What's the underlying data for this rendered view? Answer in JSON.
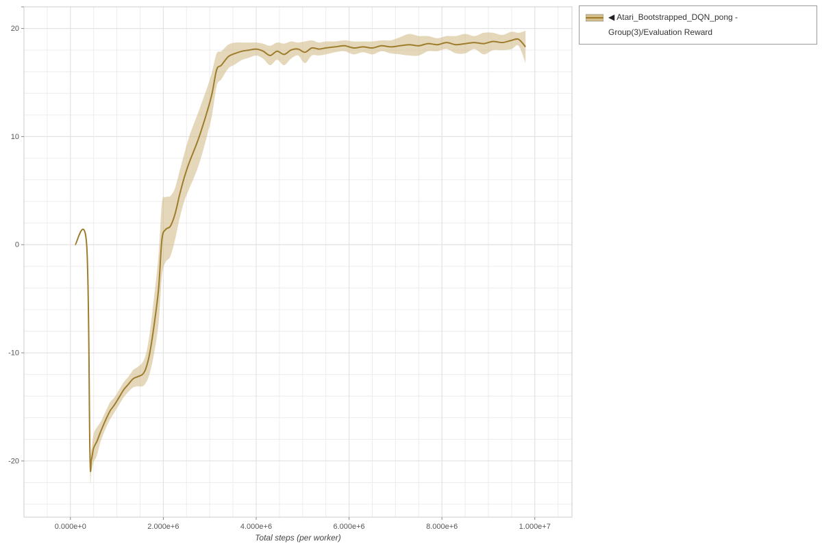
{
  "legend": {
    "marker": "◀",
    "series_label": "Atari_Bootstrapped_DQN_pong - Group(3)/Evaluation Reward"
  },
  "theme": {
    "line_color": "#9d7c2c",
    "band_color": "#d3bd8a",
    "band_opacity": 0.6,
    "grid_minor": "#ececec",
    "grid_major": "#e0e0e0",
    "frame": "#cccccc",
    "tick_color": "#888888",
    "axis_text": "#555555",
    "xlabel_color": "#444444"
  },
  "chart_data": {
    "type": "line",
    "title": "",
    "xlabel": "Total steps (per worker)",
    "ylabel": "",
    "legend_position": "top-right-outside",
    "grid": {
      "major": true,
      "minor": true
    },
    "xlim": [
      -1000000,
      10800000
    ],
    "ylim": [
      -25.2,
      22
    ],
    "x_minor_step": 500000,
    "y_minor_step": 2,
    "x_ticks": {
      "values": [
        0,
        2000000,
        4000000,
        6000000,
        8000000,
        10000000
      ],
      "labels": [
        "0.000e+0",
        "2.000e+6",
        "4.000e+6",
        "6.000e+6",
        "8.000e+6",
        "1.000e+7"
      ]
    },
    "y_ticks": {
      "values": [
        20,
        10,
        0,
        -10,
        -20
      ],
      "labels": [
        "20",
        "10",
        "0",
        "-10",
        "-20"
      ]
    },
    "series": [
      {
        "name": "Atari_Bootstrapped_DQN_pong - Group(3)/Evaluation Reward",
        "color": "#9d7c2c",
        "band_color": "#d3bd8a",
        "x": [
          100000,
          350000,
          420000,
          450000,
          500000,
          570000,
          650000,
          750000,
          850000,
          950000,
          1050000,
          1150000,
          1250000,
          1350000,
          1450000,
          1550000,
          1620000,
          1700000,
          1800000,
          1900000,
          1970000,
          2050000,
          2150000,
          2250000,
          2350000,
          2450000,
          2550000,
          2650000,
          2750000,
          2850000,
          2950000,
          3050000,
          3150000,
          3250000,
          3400000,
          3550000,
          3700000,
          3850000,
          4000000,
          4150000,
          4300000,
          4450000,
          4600000,
          4750000,
          4900000,
          5050000,
          5200000,
          5350000,
          5500000,
          5700000,
          5900000,
          6100000,
          6300000,
          6500000,
          6700000,
          6900000,
          7100000,
          7300000,
          7500000,
          7700000,
          7900000,
          8100000,
          8300000,
          8500000,
          8700000,
          8900000,
          9100000,
          9300000,
          9500000,
          9650000,
          9800000
        ],
        "mean": [
          0,
          0,
          -19.3,
          -19.9,
          -18.8,
          -18.2,
          -17.3,
          -16.3,
          -15.4,
          -14.8,
          -14.1,
          -13.4,
          -12.9,
          -12.4,
          -12.2,
          -12.0,
          -11.5,
          -10.2,
          -7.5,
          -4.0,
          0.5,
          1.4,
          1.7,
          2.8,
          4.6,
          6.2,
          7.5,
          8.6,
          9.7,
          11.0,
          12.4,
          14.0,
          16.2,
          16.6,
          17.4,
          17.7,
          17.9,
          18.0,
          18.1,
          17.9,
          17.5,
          17.9,
          17.6,
          18.0,
          18.1,
          17.8,
          18.2,
          18.1,
          18.2,
          18.3,
          18.4,
          18.2,
          18.3,
          18.2,
          18.4,
          18.3,
          18.4,
          18.5,
          18.4,
          18.6,
          18.5,
          18.7,
          18.5,
          18.6,
          18.7,
          18.6,
          18.8,
          18.7,
          18.9,
          19.0,
          18.3
        ],
        "spread": [
          0.1,
          0.1,
          1.2,
          1.0,
          1.3,
          1.3,
          0.9,
          0.8,
          0.8,
          0.7,
          0.7,
          0.7,
          0.7,
          0.8,
          0.9,
          1.1,
          1.3,
          1.8,
          2.6,
          3.2,
          3.4,
          3.0,
          2.8,
          2.4,
          2.2,
          2.2,
          2.4,
          2.5,
          2.5,
          2.4,
          2.2,
          2.0,
          1.5,
          1.3,
          1.1,
          1.0,
          0.8,
          0.7,
          0.6,
          0.7,
          0.9,
          0.8,
          1.0,
          0.8,
          0.6,
          1.0,
          0.7,
          0.6,
          0.6,
          0.5,
          0.5,
          0.6,
          0.5,
          0.6,
          0.5,
          0.6,
          0.8,
          1.0,
          0.9,
          0.7,
          0.6,
          0.6,
          0.8,
          0.9,
          0.6,
          1.0,
          0.8,
          0.7,
          0.8,
          0.6,
          1.5
        ]
      }
    ]
  }
}
